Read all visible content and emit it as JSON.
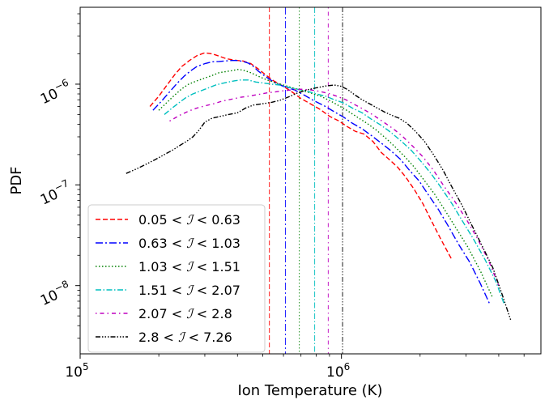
{
  "chart_data": {
    "type": "line",
    "title": "",
    "xlabel": "Ion Temperature (K)",
    "ylabel": "PDF",
    "x_scale": "log",
    "y_scale": "log",
    "xlim": [
      100000,
      5800000
    ],
    "ylim": [
      2.1e-09,
      5.8e-06
    ],
    "x_ticks": [
      {
        "value": 100000,
        "base": "10",
        "exp": "5"
      },
      {
        "value": 1000000,
        "base": "10",
        "exp": "6"
      }
    ],
    "y_ticks": [
      {
        "value": 1e-06,
        "base": "10",
        "exp": "−6"
      },
      {
        "value": 1e-07,
        "base": "10",
        "exp": "−7"
      },
      {
        "value": 1e-08,
        "base": "10",
        "exp": "−8"
      }
    ],
    "legend_position": "lower-left",
    "series": [
      {
        "name": "0.05 < ℐ < 0.63",
        "label_parts": [
          "0.05 < ",
          "ℐ",
          " < 0.63"
        ],
        "color": "#ff0000",
        "dash": "6,3",
        "threshold": 530000,
        "x": [
          185000,
          200000,
          215000,
          230000,
          245000,
          262000,
          280000,
          300000,
          320000,
          340000,
          360000,
          380000,
          400000,
          420000,
          450000,
          480000,
          510000,
          550000,
          600000,
          650000,
          700000,
          760000,
          830000,
          900000,
          980000,
          1050000,
          1130000,
          1220000,
          1320000,
          1420000,
          1520000,
          1640000,
          1760000,
          1900000,
          2050000,
          2200000,
          2400000,
          2650000
        ],
        "y": [
          6e-07,
          7.6e-07,
          9.8e-07,
          1.24e-06,
          1.5e-06,
          1.72e-06,
          1.92e-06,
          2.05e-06,
          2e-06,
          1.9e-06,
          1.8e-06,
          1.75e-06,
          1.72e-06,
          1.7e-06,
          1.6e-06,
          1.42e-06,
          1.25e-06,
          1.08e-06,
          9.5e-07,
          8.3e-07,
          7.2e-07,
          6.4e-07,
          5.6e-07,
          4.8e-07,
          4.3e-07,
          3.8e-07,
          3.4e-07,
          3.2e-07,
          2.7e-07,
          2.1e-07,
          1.8e-07,
          1.5e-07,
          1.2e-07,
          9e-08,
          6.5e-08,
          4.5e-08,
          2.9e-08,
          1.8e-08
        ]
      },
      {
        "name": "0.63 < ℐ < 1.03",
        "label_parts": [
          "0.63 < ",
          "ℐ",
          " < 1.03"
        ],
        "color": "#0000ff",
        "dash": "9,3,2,3",
        "threshold": 610000,
        "x": [
          190000,
          205000,
          220000,
          235000,
          250000,
          265000,
          280000,
          300000,
          320000,
          340000,
          360000,
          380000,
          400000,
          420000,
          440000,
          460000,
          480000,
          510000,
          550000,
          600000,
          660000,
          720000,
          790000,
          860000,
          940000,
          1020000,
          1100000,
          1200000,
          1300000,
          1420000,
          1540000,
          1680000,
          1820000,
          1980000,
          2150000,
          2350000,
          2550000,
          2800000,
          3100000,
          3400000,
          3700000
        ],
        "y": [
          5.5e-07,
          6.8e-07,
          8.4e-07,
          1.02e-06,
          1.2e-06,
          1.36e-06,
          1.5e-06,
          1.6e-06,
          1.67e-06,
          1.68e-06,
          1.7e-06,
          1.72e-06,
          1.72e-06,
          1.68e-06,
          1.62e-06,
          1.5e-06,
          1.35e-06,
          1.2e-06,
          1.05e-06,
          9.5e-07,
          8.8e-07,
          7.8e-07,
          6.8e-07,
          6.1e-07,
          5.3e-07,
          4.7e-07,
          4.1e-07,
          3.6e-07,
          3.1e-07,
          2.6e-07,
          2.2e-07,
          1.8e-07,
          1.4e-07,
          1.1e-07,
          8e-08,
          5.7e-08,
          4e-08,
          2.6e-08,
          1.7e-08,
          1.05e-08,
          6.5e-09
        ]
      },
      {
        "name": "1.03 < ℐ < 1.51",
        "label_parts": [
          "1.03 < ",
          "ℐ",
          " < 1.51"
        ],
        "color": "#008000",
        "dash": "1.5,2.5",
        "threshold": 690000,
        "x": [
          200000,
          215000,
          230000,
          245000,
          260000,
          280000,
          300000,
          320000,
          340000,
          360000,
          380000,
          400000,
          420000,
          450000,
          480000,
          520000,
          560000,
          600000,
          650000,
          700000,
          760000,
          830000,
          900000,
          980000,
          1060000,
          1150000,
          1250000,
          1360000,
          1480000,
          1600000,
          1750000,
          1900000,
          2080000,
          2280000,
          2500000,
          2750000,
          3050000,
          3400000,
          3800000
        ],
        "y": [
          5.5e-07,
          6.6e-07,
          7.8e-07,
          9e-07,
          1e-06,
          1.08e-06,
          1.15e-06,
          1.22e-06,
          1.3e-06,
          1.33e-06,
          1.36e-06,
          1.4e-06,
          1.38e-06,
          1.3e-06,
          1.2e-06,
          1.1e-06,
          1.03e-06,
          9.8e-07,
          9.2e-07,
          8.7e-07,
          8.2e-07,
          7.6e-07,
          6.9e-07,
          6.1e-07,
          5.4e-07,
          4.7e-07,
          4.1e-07,
          3.5e-07,
          2.9e-07,
          2.4e-07,
          1.9e-07,
          1.5e-07,
          1.1e-07,
          8e-08,
          5.5e-08,
          3.7e-08,
          2.4e-08,
          1.4e-08,
          7.5e-09
        ]
      },
      {
        "name": "1.51 < ℐ < 2.07",
        "label_parts": [
          "1.51 < ",
          "ℐ",
          " < 2.07"
        ],
        "color": "#00bfbf",
        "dash": "7,2.5,1.5,2.5",
        "threshold": 790000,
        "x": [
          210000,
          225000,
          240000,
          255000,
          270000,
          290000,
          310000,
          330000,
          350000,
          370000,
          390000,
          410000,
          440000,
          470000,
          500000,
          540000,
          580000,
          630000,
          680000,
          740000,
          800000,
          870000,
          940000,
          1020000,
          1100000,
          1200000,
          1300000,
          1420000,
          1550000,
          1700000,
          1850000,
          2020000,
          2200000,
          2400000,
          2650000,
          2900000,
          3200000,
          3550000,
          3900000,
          4200000
        ],
        "y": [
          5e-07,
          5.8e-07,
          6.6e-07,
          7.4e-07,
          8e-07,
          8.6e-07,
          9.2e-07,
          9.8e-07,
          1.02e-06,
          1.05e-06,
          1.08e-06,
          1.1e-06,
          1.1e-06,
          1.05e-06,
          1.03e-06,
          1e-06,
          9.8e-07,
          9.3e-07,
          8.9e-07,
          8.5e-07,
          8e-07,
          7.6e-07,
          7e-07,
          6.5e-07,
          5.8e-07,
          5.2e-07,
          4.5e-07,
          3.9e-07,
          3.3e-07,
          2.7e-07,
          2.2e-07,
          1.7e-07,
          1.3e-07,
          9.5e-08,
          6.5e-08,
          4.4e-08,
          2.9e-08,
          1.8e-08,
          1.1e-08,
          6.5e-09
        ]
      },
      {
        "name": "2.07 < ℐ < 2.8",
        "label_parts": [
          "2.07 < ",
          "ℐ",
          " < 2.8"
        ],
        "color": "#bf00bf",
        "dash": "1.5,4,5,4",
        "threshold": 890000,
        "x": [
          220000,
          240000,
          260000,
          280000,
          300000,
          325000,
          350000,
          380000,
          410000,
          440000,
          480000,
          520000,
          560000,
          600000,
          650000,
          700000,
          760000,
          820000,
          890000,
          960000,
          1040000,
          1120000,
          1220000,
          1330000,
          1450000,
          1580000,
          1720000,
          1880000,
          2050000,
          2250000,
          2450000,
          2700000,
          3000000,
          3300000,
          3650000,
          4000000
        ],
        "y": [
          4.3e-07,
          4.9e-07,
          5.4e-07,
          5.8e-07,
          6.1e-07,
          6.4e-07,
          6.8e-07,
          7.1e-07,
          7.4e-07,
          7.6e-07,
          7.9e-07,
          8.2e-07,
          8.4e-07,
          8.6e-07,
          8.8e-07,
          8.9e-07,
          8.8e-07,
          8.5e-07,
          8.1e-07,
          7.6e-07,
          7e-07,
          6.3e-07,
          5.6e-07,
          4.9e-07,
          4.2e-07,
          3.6e-07,
          3e-07,
          2.4e-07,
          1.9e-07,
          1.4e-07,
          1e-07,
          7e-08,
          4.6e-08,
          3e-08,
          1.8e-08,
          1e-08
        ]
      },
      {
        "name": "2.8 < ℐ < 7.26",
        "label_parts": [
          "2.8 < ",
          "ℐ",
          " < 7.26"
        ],
        "color": "#000000",
        "dash": "6,2,1.5,2,1.5,2,1.5,2",
        "threshold": 1010000,
        "x": [
          150000,
          165000,
          180000,
          195000,
          210000,
          225000,
          240000,
          255000,
          270000,
          285000,
          300000,
          320000,
          345000,
          370000,
          400000,
          430000,
          460000,
          500000,
          540000,
          580000,
          630000,
          680000,
          740000,
          800000,
          870000,
          940000,
          1000000,
          1060000,
          1120000,
          1200000,
          1280000,
          1370000,
          1460000,
          1560000,
          1660000,
          1780000,
          1920000,
          2080000,
          2250000,
          2450000,
          2650000,
          2900000,
          3150000,
          3450000,
          3800000,
          4100000,
          4450000
        ],
        "y": [
          1.3e-07,
          1.45e-07,
          1.62e-07,
          1.8e-07,
          2e-07,
          2.2e-07,
          2.45e-07,
          2.7e-07,
          3e-07,
          3.5e-07,
          4.2e-07,
          4.6e-07,
          4.8e-07,
          5e-07,
          5.2e-07,
          5.8e-07,
          6.2e-07,
          6.4e-07,
          6.6e-07,
          6.9e-07,
          7.5e-07,
          8.2e-07,
          8.8e-07,
          9.2e-07,
          9.6e-07,
          9.8e-07,
          9.5e-07,
          8.8e-07,
          7.9e-07,
          7e-07,
          6.4e-07,
          5.8e-07,
          5.3e-07,
          4.9e-07,
          4.6e-07,
          4.1e-07,
          3.4e-07,
          2.7e-07,
          2e-07,
          1.4e-07,
          9.5e-08,
          6.2e-08,
          4e-08,
          2.5e-08,
          1.5e-08,
          8.5e-09,
          4.5e-09
        ]
      }
    ]
  }
}
